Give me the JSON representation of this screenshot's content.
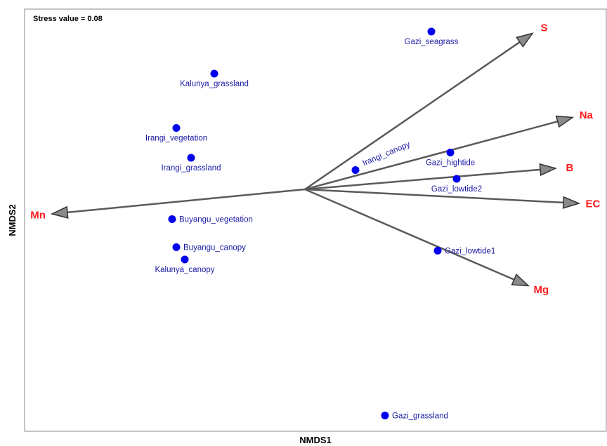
{
  "chart_data": {
    "type": "scatter",
    "subtitle": "Stress value = 0.08",
    "xlabel": "NMDS1",
    "ylabel": "NMDS2",
    "grid": false,
    "colors": {
      "points": "#0000ee",
      "point_labels": "#1a1aa6",
      "vectors": "#5a5a5a",
      "vector_labels": "#ff1a1a",
      "frame": "#888888"
    },
    "points": [
      {
        "label": "Gazi_seagrass",
        "x": 0.6,
        "y": 0.9,
        "label_pos": "below"
      },
      {
        "label": "Kalunya_grassland",
        "x": -0.43,
        "y": 0.66,
        "label_pos": "below"
      },
      {
        "label": "Irangi_vegetation",
        "x": -0.61,
        "y": 0.35,
        "label_pos": "below"
      },
      {
        "label": "Irangi_grassland",
        "x": -0.54,
        "y": 0.18,
        "label_pos": "below"
      },
      {
        "label": "Irangi_canopy",
        "x": 0.24,
        "y": 0.11,
        "label_pos": "rotated"
      },
      {
        "label": "Gazi_hightide",
        "x": 0.69,
        "y": 0.21,
        "label_pos": "below"
      },
      {
        "label": "Gazi_lowtide2",
        "x": 0.72,
        "y": 0.06,
        "label_pos": "below"
      },
      {
        "label": "Buyangu_vegetation",
        "x": -0.63,
        "y": -0.17,
        "label_pos": "right"
      },
      {
        "label": "Buyangu_canopy",
        "x": -0.61,
        "y": -0.33,
        "label_pos": "right"
      },
      {
        "label": "Kalunya_canopy",
        "x": -0.57,
        "y": -0.4,
        "label_pos": "below"
      },
      {
        "label": "Gazi_lowtide1",
        "x": 0.63,
        "y": -0.35,
        "label_pos": "right"
      },
      {
        "label": "Gazi_grassland",
        "x": 0.38,
        "y": -1.29,
        "label_pos": "right"
      }
    ],
    "vectors": [
      {
        "label": "S",
        "x": 1.08,
        "y": 0.89
      },
      {
        "label": "Na",
        "x": 1.27,
        "y": 0.41
      },
      {
        "label": "B",
        "x": 1.19,
        "y": 0.12
      },
      {
        "label": "EC",
        "x": 1.3,
        "y": -0.08
      },
      {
        "label": "Mg",
        "x": 1.06,
        "y": -0.55
      },
      {
        "label": "Mn",
        "x": -1.2,
        "y": -0.14
      }
    ]
  }
}
